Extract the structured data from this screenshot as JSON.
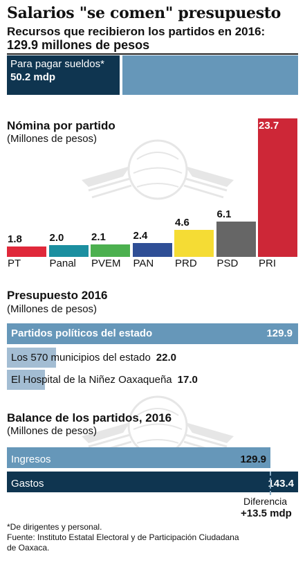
{
  "header": {
    "title": "Salarios \"se comen\" presupuesto",
    "subtitle_line1": "Recursos que recibieron los partidos en 2016:",
    "subtitle_line2": "129.9 millones de pesos"
  },
  "sueldos": {
    "label": "Para pagar sueldos*",
    "value": "50.2 mdp",
    "total": 129.9,
    "amount": 50.2
  },
  "chart_data": [
    {
      "type": "bar",
      "title": "Nómina por partido",
      "subtitle": "(Millones de pesos)",
      "categories": [
        "PT",
        "Panal",
        "PVEM",
        "PAN",
        "PRD",
        "PSD",
        "PRI"
      ],
      "values": [
        1.8,
        2.0,
        2.1,
        2.4,
        4.6,
        6.1,
        23.7
      ],
      "value_labels": [
        "1.8",
        "2.0",
        "2.1",
        "2.4",
        "4.6",
        "6.1",
        "23.7"
      ],
      "colors": [
        "#e0283a",
        "#1b8fa0",
        "#4cb04f",
        "#2f4f96",
        "#f5dc34",
        "#666666",
        "#cd2737"
      ]
    },
    {
      "type": "bar",
      "orientation": "horizontal",
      "title": "Presupuesto 2016",
      "subtitle": "(Millones de pesos)",
      "categories": [
        "Partidos políticos del estado",
        "Los 570 municipios del estado",
        "El Hospital de la Niñez Oaxaqueña"
      ],
      "values": [
        129.9,
        22.0,
        17.0
      ],
      "value_labels": [
        "129.9",
        "22.0",
        "17.0"
      ],
      "colors": [
        "#6697b9",
        "#a3bdd3",
        "#a3bdd3"
      ]
    },
    {
      "type": "bar",
      "orientation": "horizontal",
      "title": "Balance de los partidos, 2016",
      "subtitle": "(Millones de pesos)",
      "categories": [
        "Ingresos",
        "Gastos"
      ],
      "values": [
        129.9,
        143.4
      ],
      "value_labels": [
        "129.9",
        "143.4"
      ],
      "colors": [
        "#6697b9",
        "#0f3550"
      ],
      "difference": {
        "label_part1": "Diferencia",
        "value": "+13.5",
        "unit": "mdp"
      }
    }
  ],
  "footnotes": {
    "note": "*De dirigentes y personal.",
    "source_line1": "Fuente: Instituto Estatal Electoral y de Participación Ciudadana",
    "source_line2": "de Oaxaca."
  }
}
